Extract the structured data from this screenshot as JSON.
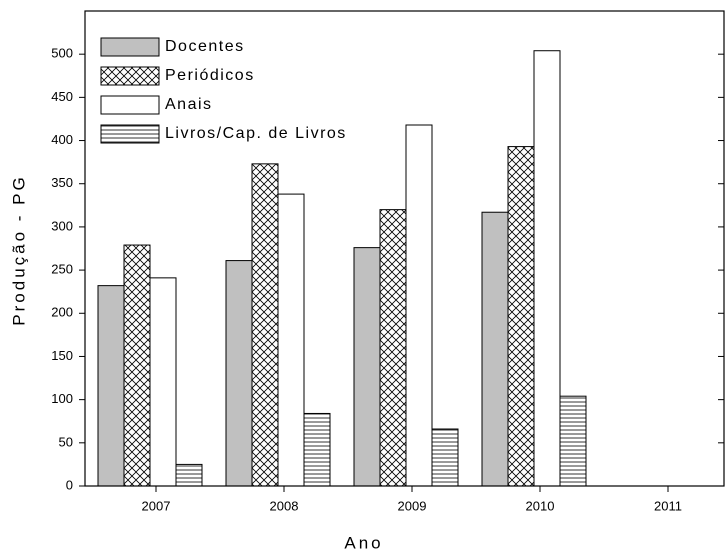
{
  "chart_data": {
    "type": "bar",
    "x_label": "Ano",
    "y_label": "Produção - PG",
    "categories": [
      "2007",
      "2008",
      "2009",
      "2010",
      "2011"
    ],
    "series": [
      {
        "name": "Docentes",
        "color": "#c0c0c0",
        "hatch": null,
        "values": [
          232,
          261,
          276,
          317,
          null
        ]
      },
      {
        "name": "Periódicos",
        "color": "#ffffff",
        "hatch": "cross",
        "values": [
          279,
          373,
          320,
          393,
          null
        ]
      },
      {
        "name": "Anais",
        "color": "#ffffff",
        "hatch": null,
        "values": [
          241,
          338,
          418,
          504,
          null
        ]
      },
      {
        "name": "Livros/Cap. de Livros",
        "color": "#ffffff",
        "hatch": "horizontal",
        "values": [
          25,
          84,
          66,
          104,
          null
        ]
      }
    ],
    "ylim": [
      0,
      550
    ],
    "yticks": [
      0,
      50,
      100,
      150,
      200,
      250,
      300,
      350,
      400,
      450,
      500
    ],
    "legend": "upper left",
    "grid": false
  }
}
